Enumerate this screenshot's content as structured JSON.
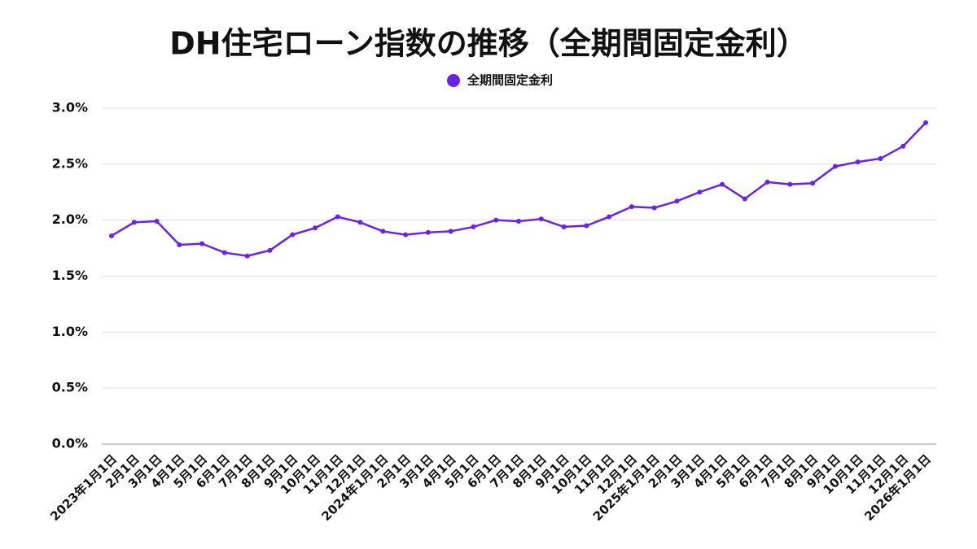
{
  "chart_data": {
    "type": "line",
    "title": "DH住宅ローン指数の推移（全期間固定金利）",
    "categories": [
      "2023年1月1日",
      "2月1日",
      "3月1日",
      "4月1日",
      "5月1日",
      "6月1日",
      "7月1日",
      "8月1日",
      "9月1日",
      "10月1日",
      "11月1日",
      "12月1日",
      "2024年1月1日",
      "2月1日",
      "3月1日",
      "4月1日",
      "5月1日",
      "6月1日",
      "7月1日",
      "8月1日",
      "9月1日",
      "10月1日",
      "11月1日",
      "12月1日",
      "2025年1月1日",
      "2月1日",
      "3月1日",
      "4月1日",
      "5月1日",
      "6月1日",
      "7月1日",
      "8月1日",
      "9月1日",
      "10月1日",
      "11月1日",
      "12月1日",
      "2026年1月1日"
    ],
    "series": [
      {
        "name": "全期間固定金利",
        "color": "#6a22e6",
        "values": [
          1.86,
          1.98,
          1.99,
          1.78,
          1.79,
          1.71,
          1.68,
          1.73,
          1.87,
          1.93,
          2.03,
          1.98,
          1.9,
          1.87,
          1.89,
          1.9,
          1.94,
          2.0,
          1.99,
          2.01,
          1.94,
          1.95,
          2.03,
          2.12,
          2.11,
          2.17,
          2.25,
          2.32,
          2.19,
          2.34,
          2.32,
          2.33,
          2.48,
          2.52,
          2.55,
          2.66,
          2.87
        ]
      }
    ],
    "ylim": [
      0,
      3
    ],
    "yticks": [
      {
        "value": 0,
        "label": "0.0%"
      },
      {
        "value": 0.5,
        "label": "0.5%"
      },
      {
        "value": 1,
        "label": "1.0%"
      },
      {
        "value": 1.5,
        "label": "1.5%"
      },
      {
        "value": 2,
        "label": "2.0%"
      },
      {
        "value": 2.5,
        "label": "2.5%"
      },
      {
        "value": 3,
        "label": "3.0%"
      }
    ],
    "grid": true,
    "legend": "top"
  }
}
